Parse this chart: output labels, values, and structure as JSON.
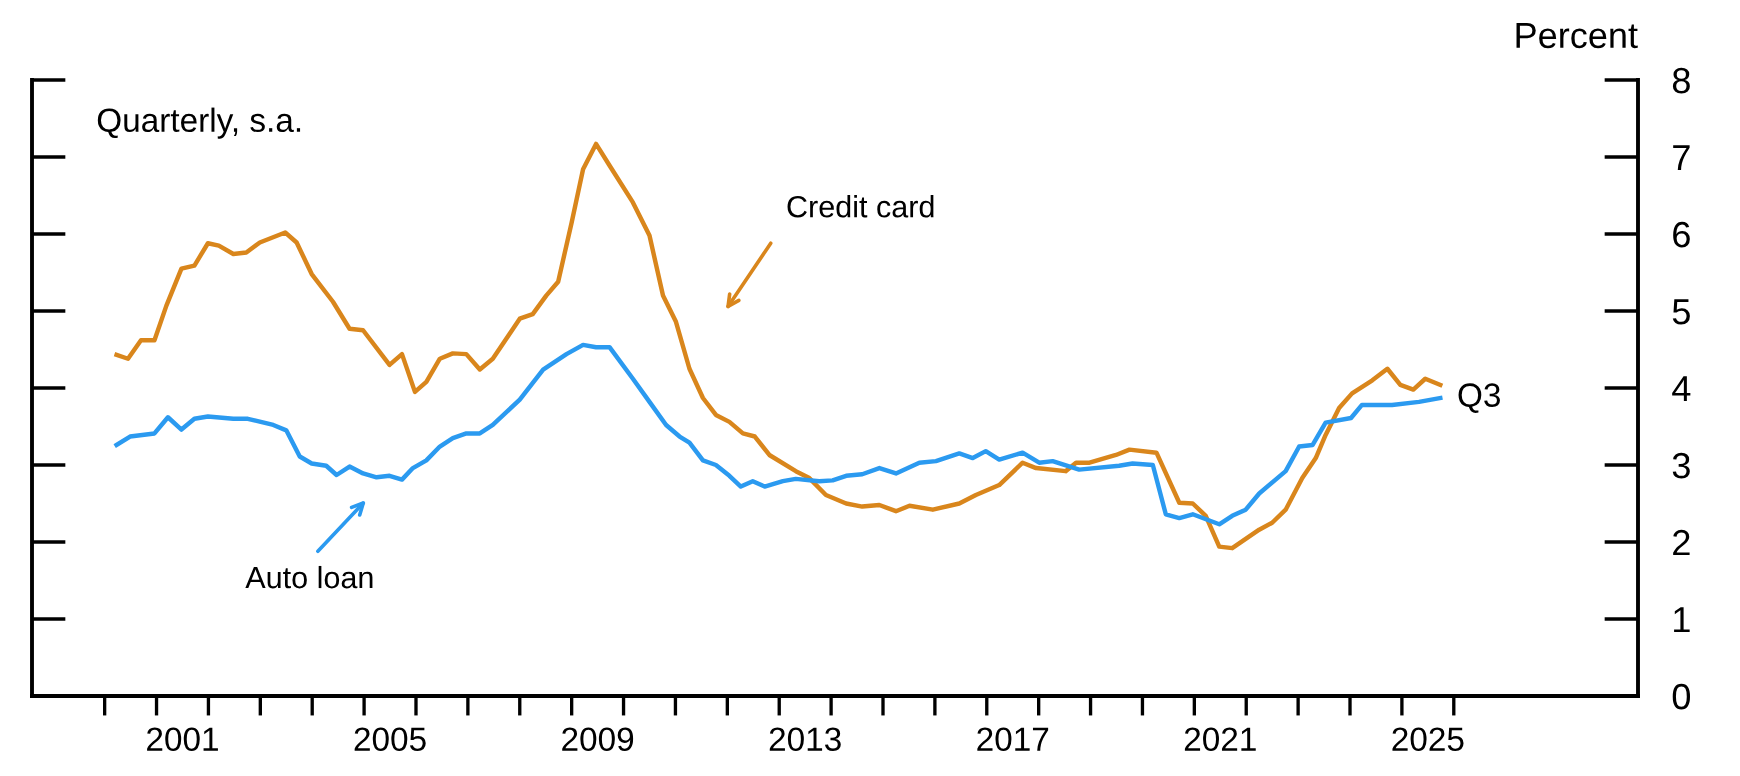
{
  "chart_data": {
    "type": "line",
    "ylabel": "Percent",
    "annotations": [
      "Quarterly, s.a.",
      {
        "text": "Q3",
        "x": 2025.74,
        "y": 3.87
      },
      "Credit card",
      "Auto loan"
    ],
    "xlim": [
      1998.6,
      2029.55
    ],
    "ylim": [
      0,
      8
    ],
    "yticks": [
      0,
      1,
      2,
      3,
      4,
      5,
      6,
      7,
      8
    ],
    "xticks": [
      {
        "value": 2000,
        "label": null
      },
      {
        "value": 2001,
        "label": null
      },
      {
        "value": 2001.5,
        "label": "2001"
      },
      {
        "value": 2002,
        "label": null
      },
      {
        "value": 2003,
        "label": null
      },
      {
        "value": 2004,
        "label": null
      },
      {
        "value": 2005,
        "label": null
      },
      {
        "value": 2005.5,
        "label": "2005"
      },
      {
        "value": 2006,
        "label": null
      },
      {
        "value": 2007,
        "label": null
      },
      {
        "value": 2008,
        "label": null
      },
      {
        "value": 2009,
        "label": null
      },
      {
        "value": 2009.5,
        "label": "2009"
      },
      {
        "value": 2010,
        "label": null
      },
      {
        "value": 2011,
        "label": null
      },
      {
        "value": 2012,
        "label": null
      },
      {
        "value": 2013,
        "label": null
      },
      {
        "value": 2013.5,
        "label": "2013"
      },
      {
        "value": 2014,
        "label": null
      },
      {
        "value": 2015,
        "label": null
      },
      {
        "value": 2016,
        "label": null
      },
      {
        "value": 2017,
        "label": null
      },
      {
        "value": 2017.5,
        "label": "2017"
      },
      {
        "value": 2018,
        "label": null
      },
      {
        "value": 2019,
        "label": null
      },
      {
        "value": 2020,
        "label": null
      },
      {
        "value": 2021,
        "label": null
      },
      {
        "value": 2021.5,
        "label": "2021"
      },
      {
        "value": 2022,
        "label": null
      },
      {
        "value": 2023,
        "label": null
      },
      {
        "value": 2024,
        "label": null
      },
      {
        "value": 2025,
        "label": null
      },
      {
        "value": 2025.5,
        "label": "2025"
      },
      {
        "value": 2026,
        "label": null
      }
    ],
    "grid": false,
    "legend": false,
    "marker": "none",
    "line_style": "solid",
    "series": [
      {
        "color": "#d9861c",
        "x": [
          2000.23,
          2000.45,
          2000.7,
          2000.96,
          2001.19,
          2001.48,
          2001.73,
          2001.99,
          2002.2,
          2002.48,
          2002.73,
          2002.99,
          2003.48,
          2003.7,
          2003.99,
          2004.4,
          2004.72,
          2004.98,
          2005.49,
          2005.73,
          2005.98,
          2006.2,
          2006.46,
          2006.71,
          2006.97,
          2007.23,
          2007.48,
          2008.0,
          2008.25,
          2008.51,
          2008.74,
          2009.0,
          2009.22,
          2009.47,
          2009.73,
          2010.18,
          2010.5,
          2010.76,
          2011.01,
          2011.27,
          2011.53,
          2011.78,
          2012.04,
          2012.3,
          2012.53,
          2012.81,
          2013.32,
          2013.58,
          2013.9,
          2014.29,
          2014.6,
          2014.93,
          2015.25,
          2015.51,
          2015.96,
          2016.47,
          2016.79,
          2017.24,
          2017.69,
          2017.95,
          2018.52,
          2018.72,
          2018.98,
          2019.49,
          2019.75,
          2020.27,
          2020.71,
          2020.97,
          2021.22,
          2021.48,
          2021.73,
          2022.25,
          2022.5,
          2022.76,
          2023.08,
          2023.34,
          2023.53,
          2023.79,
          2024.04,
          2024.43,
          2024.72,
          2024.97,
          2025.22,
          2025.45,
          2025.74
        ],
        "values": [
          4.43,
          4.38,
          4.62,
          4.62,
          5.07,
          5.55,
          5.59,
          5.88,
          5.85,
          5.74,
          5.76,
          5.89,
          6.02,
          5.89,
          5.48,
          5.12,
          4.77,
          4.75,
          4.3,
          4.44,
          3.95,
          4.08,
          4.38,
          4.45,
          4.44,
          4.24,
          4.38,
          4.9,
          4.96,
          5.2,
          5.38,
          6.15,
          6.84,
          7.17,
          6.89,
          6.41,
          5.98,
          5.2,
          4.86,
          4.25,
          3.87,
          3.65,
          3.56,
          3.41,
          3.37,
          3.13,
          2.92,
          2.83,
          2.61,
          2.5,
          2.46,
          2.48,
          2.4,
          2.47,
          2.42,
          2.5,
          2.61,
          2.74,
          3.03,
          2.96,
          2.92,
          3.03,
          3.03,
          3.13,
          3.2,
          3.16,
          2.51,
          2.5,
          2.34,
          1.94,
          1.92,
          2.16,
          2.25,
          2.42,
          2.83,
          3.09,
          3.39,
          3.74,
          3.93,
          4.1,
          4.25,
          4.04,
          3.98,
          4.12,
          4.04
        ]
      },
      {
        "color": "#2b9af0",
        "x": [
          2000.23,
          2000.49,
          2000.96,
          2001.22,
          2001.48,
          2001.73,
          2001.99,
          2002.48,
          2002.76,
          2003.25,
          2003.5,
          2003.76,
          2003.99,
          2004.27,
          2004.47,
          2004.72,
          2004.98,
          2005.24,
          2005.49,
          2005.73,
          2005.94,
          2006.2,
          2006.46,
          2006.71,
          2006.97,
          2007.23,
          2007.48,
          2008.0,
          2008.45,
          2008.9,
          2009.22,
          2009.47,
          2009.73,
          2010.18,
          2010.5,
          2010.82,
          2011.08,
          2011.27,
          2011.53,
          2011.78,
          2012.04,
          2012.26,
          2012.49,
          2012.72,
          2013.07,
          2013.32,
          2013.77,
          2014.03,
          2014.29,
          2014.6,
          2014.93,
          2015.25,
          2015.7,
          2016.02,
          2016.47,
          2016.73,
          2016.98,
          2017.24,
          2017.69,
          2018.01,
          2018.27,
          2018.78,
          2019.55,
          2019.81,
          2020.2,
          2020.45,
          2020.71,
          2020.97,
          2021.48,
          2021.73,
          2021.99,
          2022.25,
          2022.76,
          2023.02,
          2023.28,
          2023.53,
          2024.02,
          2024.23,
          2024.81,
          2025.33,
          2025.74
        ],
        "values": [
          3.26,
          3.37,
          3.41,
          3.62,
          3.46,
          3.6,
          3.63,
          3.6,
          3.6,
          3.52,
          3.45,
          3.11,
          3.02,
          2.99,
          2.87,
          2.98,
          2.89,
          2.84,
          2.86,
          2.81,
          2.96,
          3.06,
          3.24,
          3.35,
          3.41,
          3.41,
          3.52,
          3.85,
          4.24,
          4.44,
          4.56,
          4.53,
          4.53,
          4.12,
          3.82,
          3.52,
          3.37,
          3.29,
          3.06,
          3.0,
          2.86,
          2.72,
          2.79,
          2.72,
          2.79,
          2.82,
          2.79,
          2.8,
          2.86,
          2.88,
          2.96,
          2.89,
          3.03,
          3.05,
          3.15,
          3.09,
          3.18,
          3.07,
          3.16,
          3.03,
          3.05,
          2.94,
          2.99,
          3.02,
          3.0,
          2.36,
          2.31,
          2.36,
          2.23,
          2.34,
          2.42,
          2.63,
          2.92,
          3.24,
          3.26,
          3.55,
          3.61,
          3.78,
          3.78,
          3.82,
          3.87
        ]
      }
    ]
  }
}
